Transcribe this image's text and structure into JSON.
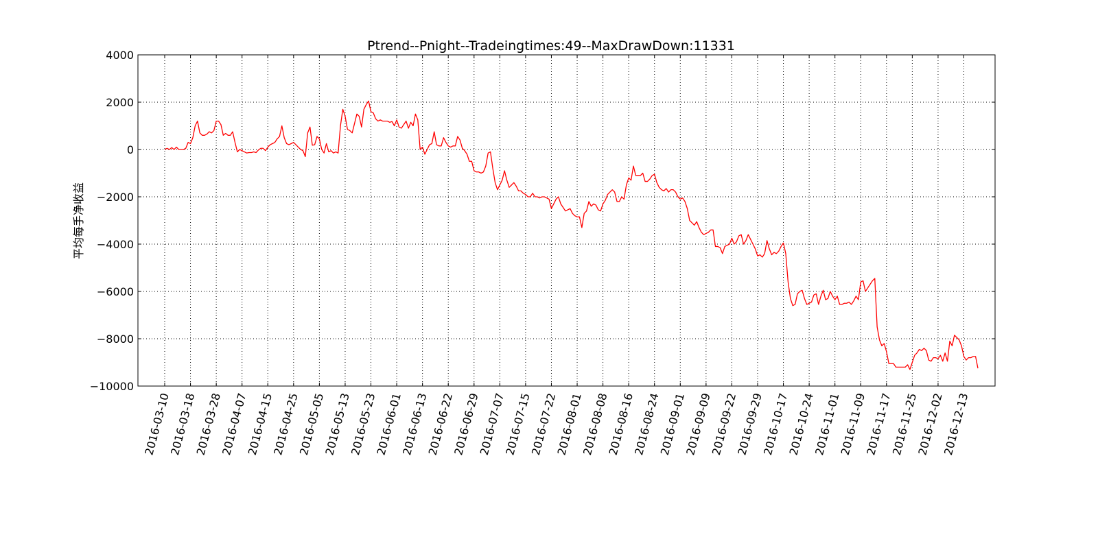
{
  "chart_data": {
    "type": "line",
    "title": "Ptrend--Pnight--Tradeingtimes:49--MaxDrawDown:11331",
    "xlabel": "",
    "ylabel": "平均每手净收益",
    "ylim": [
      -10000,
      4000
    ],
    "yticks": [
      4000,
      2000,
      0,
      -2000,
      -4000,
      -6000,
      -8000,
      -10000
    ],
    "ytick_labels": [
      "4000",
      "2000",
      "0",
      "−2000",
      "−4000",
      "−6000",
      "−8000",
      "−10000"
    ],
    "xtick_labels": [
      "2016-03-10",
      "2016-03-18",
      "2016-03-28",
      "2016-04-07",
      "2016-04-15",
      "2016-04-25",
      "2016-05-05",
      "2016-05-13",
      "2016-05-23",
      "2016-06-01",
      "2016-06-13",
      "2016-06-22",
      "2016-06-29",
      "2016-07-07",
      "2016-07-15",
      "2016-07-22",
      "2016-08-01",
      "2016-08-08",
      "2016-08-16",
      "2016-08-24",
      "2016-09-01",
      "2016-09-09",
      "2016-09-22",
      "2016-09-29",
      "2016-10-17",
      "2016-10-24",
      "2016-11-01",
      "2016-11-09",
      "2016-11-17",
      "2016-11-25",
      "2016-12-02",
      "2016-12-13"
    ],
    "grid": true,
    "grid_style": "dotted",
    "series_color": "#ff0000",
    "series": [
      {
        "values": [
          0,
          50,
          0,
          80,
          0,
          100,
          0,
          0,
          0,
          50,
          300,
          250,
          500,
          1000,
          1200,
          700,
          600,
          600,
          650,
          750,
          700,
          800,
          1200,
          1200,
          1050,
          600,
          680,
          600,
          600,
          750,
          300,
          -100,
          0,
          -50,
          -100,
          -150,
          -130,
          -130,
          -100,
          -130,
          -20,
          50,
          50,
          -50,
          100,
          200,
          250,
          300,
          450,
          550,
          1000,
          500,
          250,
          200,
          250,
          300,
          200,
          100,
          0,
          -50,
          -300,
          700,
          950,
          180,
          200,
          550,
          450,
          0,
          -150,
          250,
          -100,
          -50,
          -150,
          -100,
          -150,
          1000,
          1700,
          1400,
          850,
          800,
          700,
          1100,
          1500,
          1400,
          950,
          1700,
          1900,
          2050,
          1600,
          1550,
          1300,
          1200,
          1250,
          1200,
          1200,
          1200,
          1150,
          1180,
          1000,
          1250,
          950,
          900,
          1050,
          1200,
          900,
          1150,
          1000,
          1500,
          1250,
          0,
          100,
          -200,
          0,
          200,
          250,
          750,
          200,
          150,
          150,
          500,
          300,
          150,
          100,
          150,
          150,
          550,
          400,
          50,
          -50,
          -200,
          -500,
          -500,
          -900,
          -950,
          -950,
          -1000,
          -950,
          -700,
          -150,
          -100,
          -800,
          -1400,
          -1700,
          -1500,
          -1300,
          -900,
          -1300,
          -1600,
          -1500,
          -1400,
          -1550,
          -1750,
          -1750,
          -1850,
          -1900,
          -2000,
          -2000,
          -1850,
          -2000,
          -2000,
          -2050,
          -2000,
          -2000,
          -2050,
          -2100,
          -2500,
          -2300,
          -2100,
          -2000,
          -2300,
          -2450,
          -2600,
          -2550,
          -2500,
          -2700,
          -2800,
          -2850,
          -2850,
          -3300,
          -2700,
          -2600,
          -2200,
          -2400,
          -2300,
          -2350,
          -2550,
          -2600,
          -2300,
          -2150,
          -1900,
          -1800,
          -1700,
          -1800,
          -2200,
          -2200,
          -2000,
          -2100,
          -1500,
          -1200,
          -1300,
          -700,
          -1100,
          -1100,
          -1100,
          -1000,
          -1350,
          -1350,
          -1250,
          -1100,
          -1050,
          -1400,
          -1600,
          -1700,
          -1750,
          -1650,
          -1800,
          -1700,
          -1700,
          -1800,
          -2000,
          -2100,
          -2050,
          -2200,
          -2500,
          -3000,
          -3100,
          -3200,
          -3050,
          -3300,
          -3500,
          -3600,
          -3550,
          -3500,
          -3400,
          -3400,
          -4100,
          -4100,
          -4150,
          -4400,
          -4100,
          -4050,
          -4000,
          -3750,
          -4000,
          -3900,
          -3650,
          -3600,
          -4000,
          -3850,
          -3600,
          -3800,
          -4000,
          -4200,
          -4500,
          -4450,
          -4550,
          -4400,
          -3850,
          -4200,
          -4450,
          -4350,
          -4400,
          -4300,
          -4100,
          -3950,
          -4400,
          -5600,
          -6300,
          -6600,
          -6550,
          -6100,
          -6000,
          -5950,
          -6300,
          -6550,
          -6500,
          -6450,
          -6150,
          -6100,
          -6550,
          -6200,
          -5950,
          -6350,
          -6300,
          -6000,
          -6200,
          -6350,
          -6200,
          -6550,
          -6550,
          -6500,
          -6500,
          -6450,
          -6550,
          -6400,
          -6200,
          -6350,
          -5600,
          -5550,
          -6000,
          -5850,
          -5700,
          -5550,
          -5450,
          -7500,
          -8050,
          -8300,
          -8200,
          -8550,
          -9050,
          -9050,
          -9050,
          -9200,
          -9200,
          -9200,
          -9200,
          -9200,
          -9100,
          -9300,
          -9000,
          -8700,
          -8600,
          -8450,
          -8500,
          -8400,
          -8500,
          -8900,
          -8950,
          -8800,
          -8800,
          -8850,
          -8700,
          -8950,
          -8600,
          -8950,
          -8100,
          -8300,
          -7850,
          -7950,
          -8050,
          -8300,
          -8750,
          -8900,
          -8800,
          -8800,
          -8750,
          -8750,
          -9250
        ],
        "xtick_indices": [
          0,
          11,
          22,
          33,
          44,
          55,
          66,
          77,
          88,
          99,
          110,
          121,
          132,
          143,
          154,
          165,
          176,
          187,
          198,
          209,
          220,
          231,
          242,
          253,
          264,
          275,
          286,
          297,
          308,
          319,
          330,
          341
        ]
      }
    ]
  }
}
